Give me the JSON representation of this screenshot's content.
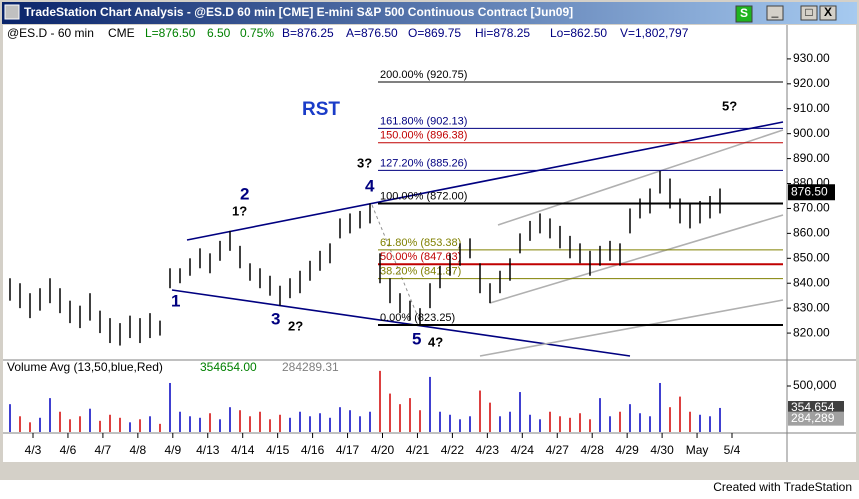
{
  "window": {
    "title": "TradeStation Chart Analysis - @ES.D  60 min  [CME] E-mini S&P 500 Continuous Contract [Jun09]",
    "buttons": [
      "S",
      "_",
      "□",
      "X"
    ]
  },
  "status_line": [
    "@ES.D - 60 min",
    "CME",
    "L=876.50",
    "6.50",
    "0.75%",
    "B=876.25",
    "A=876.50",
    "O=869.75",
    "Hi=878.25",
    "Lo=862.50",
    "V=1,802,797"
  ],
  "study_line": [
    "Volume Avg (13,50,blue,Red)",
    "354654.00",
    "284289.31"
  ],
  "chart": {
    "type": "ohlc",
    "ylim": [
      809.2,
      943.6
    ],
    "yticks": [
      {
        "value": 930,
        "label": "930.00"
      },
      {
        "value": 920,
        "label": "920.00"
      },
      {
        "value": 910,
        "label": "910.00"
      },
      {
        "value": 900,
        "label": "900.00"
      },
      {
        "value": 890,
        "label": "890.00"
      },
      {
        "value": 880,
        "label": "880.00"
      },
      {
        "value": 870,
        "label": "870.00"
      },
      {
        "value": 860,
        "label": "860.00"
      },
      {
        "value": 850,
        "label": "850.00"
      },
      {
        "value": 840,
        "label": "840.00"
      },
      {
        "value": 830,
        "label": "830.00"
      },
      {
        "value": 820,
        "label": "820.00"
      }
    ],
    "last_price": {
      "value": 876.5,
      "label": "876.50"
    },
    "color": "#000000",
    "high": [
      842,
      840,
      836,
      838,
      842,
      838,
      833,
      831,
      836,
      829,
      826,
      824,
      827,
      826,
      828,
      825,
      846,
      846,
      850,
      854,
      852,
      857,
      861,
      855,
      848,
      846,
      843,
      839,
      842,
      845,
      849,
      853,
      856,
      866,
      868,
      869,
      872,
      852,
      842,
      836,
      833,
      830,
      840,
      847,
      852,
      856,
      858,
      848,
      840,
      845,
      850,
      860,
      865,
      868,
      866,
      863,
      859,
      856,
      853,
      855,
      857,
      856,
      870,
      874,
      878,
      885,
      882,
      874,
      872,
      873,
      875,
      878
    ],
    "low": [
      833,
      830,
      826,
      829,
      832,
      828,
      824,
      822,
      825,
      820,
      816,
      815,
      818,
      816,
      818,
      819,
      838,
      840,
      843,
      846,
      844,
      849,
      853,
      846,
      841,
      838,
      835,
      831,
      834,
      836,
      841,
      845,
      848,
      858,
      860,
      862,
      864,
      840,
      832,
      828,
      825,
      823,
      830,
      838,
      843,
      847,
      850,
      836,
      832,
      836,
      841,
      852,
      857,
      860,
      858,
      854,
      850,
      848,
      843,
      847,
      849,
      847,
      860,
      866,
      868,
      876,
      870,
      864,
      862,
      864,
      866,
      868
    ],
    "dates": [
      "4/3",
      "4/6",
      "4/7",
      "4/8",
      "4/9",
      "4/13",
      "4/14",
      "4/15",
      "4/16",
      "4/17",
      "4/20",
      "4/21",
      "4/22",
      "4/23",
      "4/24",
      "4/27",
      "4/28",
      "4/29",
      "4/30",
      "May",
      "5/4"
    ],
    "fib_levels": [
      {
        "label": "200.00% (920.75)",
        "price": 920.75,
        "color": "#000000"
      },
      {
        "label": "161.80% (902.13)",
        "price": 902.13,
        "color": "#000080"
      },
      {
        "label": "150.00% (896.38)",
        "price": 896.38,
        "color": "#c00000"
      },
      {
        "label": "127.20% (885.26)",
        "price": 885.26,
        "color": "#000080"
      },
      {
        "label": "100.00% (872.00)",
        "price": 872,
        "color": "#000000"
      },
      {
        "label": "61.80% (853.38)",
        "price": 853.38,
        "color": "#808000"
      },
      {
        "label": "50.00% (847.63)",
        "price": 847.63,
        "color": "#c00000"
      },
      {
        "label": "38.20% (841.87)",
        "price": 841.87,
        "color": "#808000"
      },
      {
        "label": "0.00% (823.25)",
        "price": 823.25,
        "color": "#000000"
      }
    ],
    "annotations": [
      "RST",
      "1",
      "2",
      "1?",
      "3",
      "2?",
      "3?",
      "4",
      "5",
      "4?",
      "5?"
    ],
    "volume": {
      "ylim": [
        196090,
        658560
      ],
      "up_color": "#0000c0",
      "down_color": "#d00000",
      "values": [
        380000,
        300000,
        260000,
        290000,
        420000,
        330000,
        280000,
        300000,
        350000,
        270000,
        310000,
        290000,
        260000,
        280000,
        300000,
        250000,
        520000,
        330000,
        300000,
        290000,
        320000,
        280000,
        360000,
        340000,
        300000,
        330000,
        280000,
        310000,
        290000,
        330000,
        300000,
        320000,
        290000,
        360000,
        340000,
        300000,
        330000,
        600000,
        450000,
        380000,
        420000,
        340000,
        560000,
        330000,
        310000,
        280000,
        300000,
        470000,
        390000,
        300000,
        330000,
        460000,
        310000,
        280000,
        330000,
        300000,
        290000,
        320000,
        280000,
        420000,
        300000,
        330000,
        380000,
        320000,
        300000,
        520000,
        360000,
        430000,
        330000,
        310000,
        300000,
        355000
      ],
      "yticks": [
        {
          "value": 500000,
          "label": "500,000"
        }
      ],
      "markers": [
        {
          "value": 354654,
          "label": "354,654",
          "color": "#404040"
        },
        {
          "value": 284289,
          "label": "284,289",
          "color": "#a0a0a0"
        }
      ]
    }
  },
  "footer": "Created with TradeStation"
}
